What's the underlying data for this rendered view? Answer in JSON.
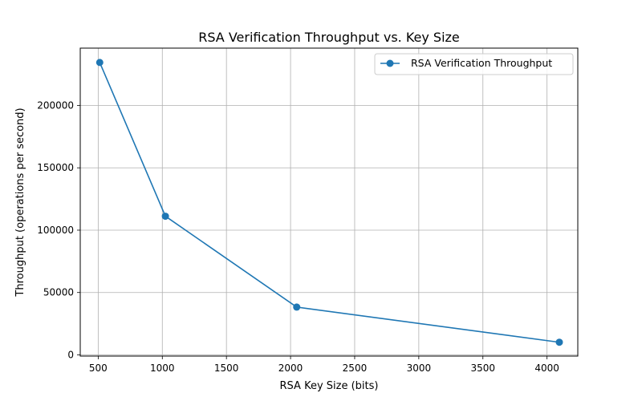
{
  "chart_data": {
    "type": "line",
    "title": "RSA Verification Throughput vs. Key Size",
    "xlabel": "RSA Key Size (bits)",
    "ylabel": "Throughput (operations per second)",
    "xlim": [
      360,
      4240
    ],
    "ylim": [
      -1000,
      246000
    ],
    "xticks": [
      500,
      1000,
      1500,
      2000,
      2500,
      3000,
      3500,
      4000
    ],
    "yticks": [
      0,
      50000,
      100000,
      150000,
      200000
    ],
    "grid": true,
    "legend_position": "top-right",
    "series": [
      {
        "name": "RSA Verification Throughput",
        "color": "#1f77b4",
        "marker": "circle",
        "x": [
          512,
          1024,
          2048,
          4096
        ],
        "y": [
          234500,
          111200,
          38300,
          10100
        ]
      }
    ]
  }
}
